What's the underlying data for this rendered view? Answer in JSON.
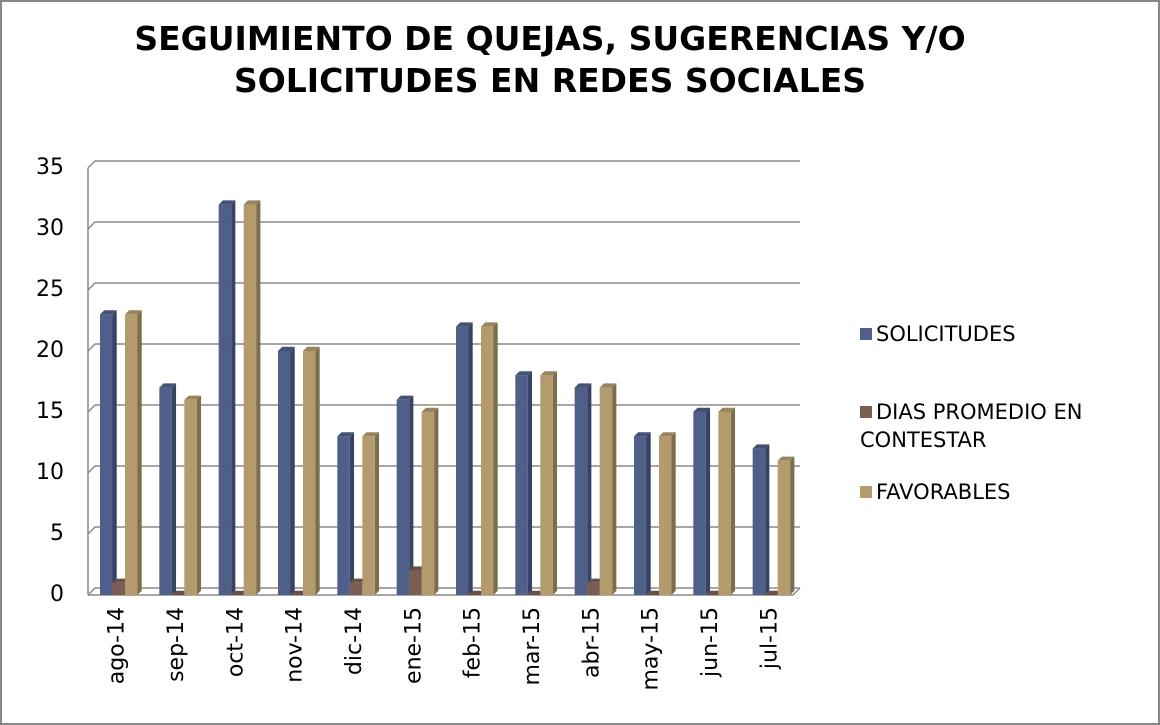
{
  "chart_data": {
    "type": "bar",
    "title": "SEGUIMIENTO DE QUEJAS, SUGERENCIAS Y/O SOLICITUDES EN REDES SOCIALES",
    "categories": [
      "ago-14",
      "sep-14",
      "oct-14",
      "nov-14",
      "dic-14",
      "ene-15",
      "feb-15",
      "mar-15",
      "abr-15",
      "may-15",
      "jun-15",
      "jul-15"
    ],
    "series": [
      {
        "name": "SOLICITUDES",
        "color": "#4f5f8a",
        "values": [
          23,
          17,
          32,
          20,
          13,
          16,
          22,
          18,
          17,
          13,
          15,
          12
        ]
      },
      {
        "name": "DIAS PROMEDIO EN CONTESTAR",
        "color": "#7a5e53",
        "values": [
          1,
          0,
          0,
          0,
          1,
          2,
          0,
          0,
          1,
          0,
          0,
          0
        ]
      },
      {
        "name": "FAVORABLES",
        "color": "#b39b6e",
        "values": [
          23,
          16,
          32,
          20,
          13,
          15,
          22,
          18,
          17,
          13,
          15,
          11
        ]
      }
    ],
    "ylim": [
      0,
      35
    ],
    "yticks": [
      0,
      5,
      10,
      15,
      20,
      25,
      30,
      35
    ],
    "grid": true,
    "legend": "right"
  }
}
